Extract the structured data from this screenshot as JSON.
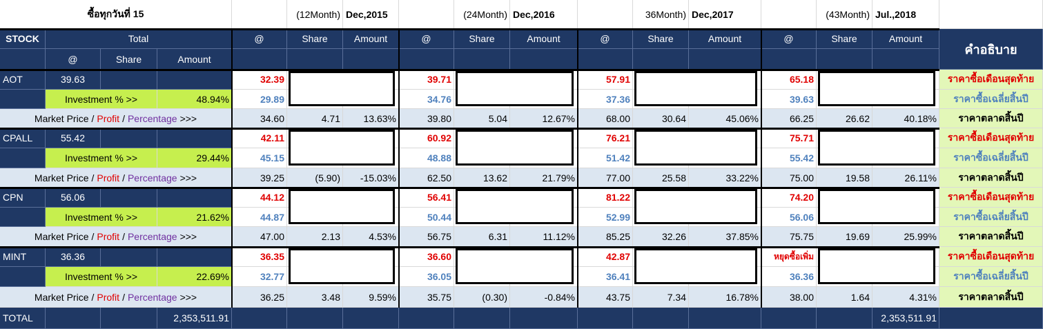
{
  "title": "ซื้อทุกวันที่ 15",
  "periods": [
    {
      "months": "(12Month)",
      "date": "Dec,2015"
    },
    {
      "months": "(24Month)",
      "date": "Dec,2016"
    },
    {
      "months": "36Month)",
      "date": "Dec,2017"
    },
    {
      "months": "(43Month)",
      "date": "Jul.,2018"
    }
  ],
  "headers": {
    "stock": "STOCK",
    "total": "Total",
    "at": "@",
    "share": "Share",
    "amount": "Amount",
    "description": "คำอธิบาย"
  },
  "labels": {
    "investment": "Investment % >>",
    "market_price": "Market Price",
    "profit": "Profit",
    "percentage": "Percentage",
    "arrows": ">>>",
    "slash": "/",
    "desc_last": "ราคาซื้อเดือนสุดท้าย",
    "desc_avg": "ราคาซื้อเฉลี่ยสิ้นปี",
    "desc_market": "ราคาตลาดสิ้นปี"
  },
  "stocks": [
    {
      "name": "AOT",
      "avg": "39.63",
      "investment_pct": "48.94%",
      "last": [
        "32.39",
        "39.71",
        "57.91",
        "65.18"
      ],
      "avgp": [
        "29.89",
        "34.76",
        "37.36",
        "39.63"
      ],
      "market": [
        {
          "price": "34.60",
          "share": "4.71",
          "pct": "13.63%"
        },
        {
          "price": "39.80",
          "share": "5.04",
          "pct": "12.67%"
        },
        {
          "price": "68.00",
          "share": "30.64",
          "pct": "45.06%"
        },
        {
          "price": "66.25",
          "share": "26.62",
          "pct": "40.18%"
        }
      ]
    },
    {
      "name": "CPALL",
      "avg": "55.42",
      "investment_pct": "29.44%",
      "last": [
        "42.11",
        "60.92",
        "76.21",
        "75.71"
      ],
      "avgp": [
        "45.15",
        "48.88",
        "51.42",
        "55.42"
      ],
      "market": [
        {
          "price": "39.25",
          "share": "(5.90)",
          "pct": "-15.03%"
        },
        {
          "price": "62.50",
          "share": "13.62",
          "pct": "21.79%"
        },
        {
          "price": "77.00",
          "share": "25.58",
          "pct": "33.22%"
        },
        {
          "price": "75.00",
          "share": "19.58",
          "pct": "26.11%"
        }
      ]
    },
    {
      "name": "CPN",
      "avg": "56.06",
      "investment_pct": "21.62%",
      "last": [
        "44.12",
        "56.41",
        "81.22",
        "74.20"
      ],
      "avgp": [
        "44.87",
        "50.44",
        "52.99",
        "56.06"
      ],
      "market": [
        {
          "price": "47.00",
          "share": "2.13",
          "pct": "4.53%"
        },
        {
          "price": "56.75",
          "share": "6.31",
          "pct": "11.12%"
        },
        {
          "price": "85.25",
          "share": "32.26",
          "pct": "37.85%"
        },
        {
          "price": "75.75",
          "share": "19.69",
          "pct": "25.99%"
        }
      ]
    },
    {
      "name": "MINT",
      "avg": "36.36",
      "investment_pct": "22.69%",
      "last": [
        "36.35",
        "36.60",
        "42.87",
        "หยุดซื้อเพิ่ม"
      ],
      "avgp": [
        "32.77",
        "36.05",
        "36.41",
        "36.36"
      ],
      "market": [
        {
          "price": "36.25",
          "share": "3.48",
          "pct": "9.59%"
        },
        {
          "price": "35.75",
          "share": "(0.30)",
          "pct": "-0.84%"
        },
        {
          "price": "43.75",
          "share": "7.34",
          "pct": "16.78%"
        },
        {
          "price": "38.00",
          "share": "1.64",
          "pct": "4.31%"
        }
      ]
    }
  ],
  "total": {
    "label": "TOTAL",
    "amount": "2,353,511.91",
    "amount_last": "2,353,511.91"
  }
}
